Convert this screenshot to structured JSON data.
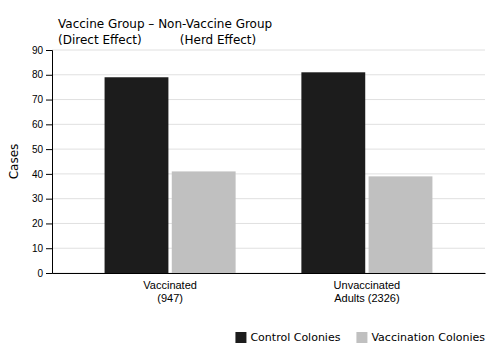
{
  "chart_data": {
    "type": "bar",
    "y_label": "Cases",
    "annotations": [
      "Vaccine Group – Non-Vaccine Group",
      "(Direct Effect)          (Herd Effect)"
    ],
    "categories": [
      "Vaccinated\n(947)",
      "Unvaccinated\nAdults (2326)"
    ],
    "series": [
      {
        "name": "Control Colonies",
        "color": "#1c1c1c",
        "values": [
          79,
          81
        ]
      },
      {
        "name": "Vaccination Colonies",
        "color": "#c0c0c0",
        "values": [
          41,
          39
        ]
      }
    ],
    "ylim": [
      0,
      90
    ],
    "yticks": [
      0,
      10,
      20,
      30,
      40,
      50,
      60,
      70,
      80,
      90
    ],
    "grid": true,
    "legend": "lower right"
  }
}
